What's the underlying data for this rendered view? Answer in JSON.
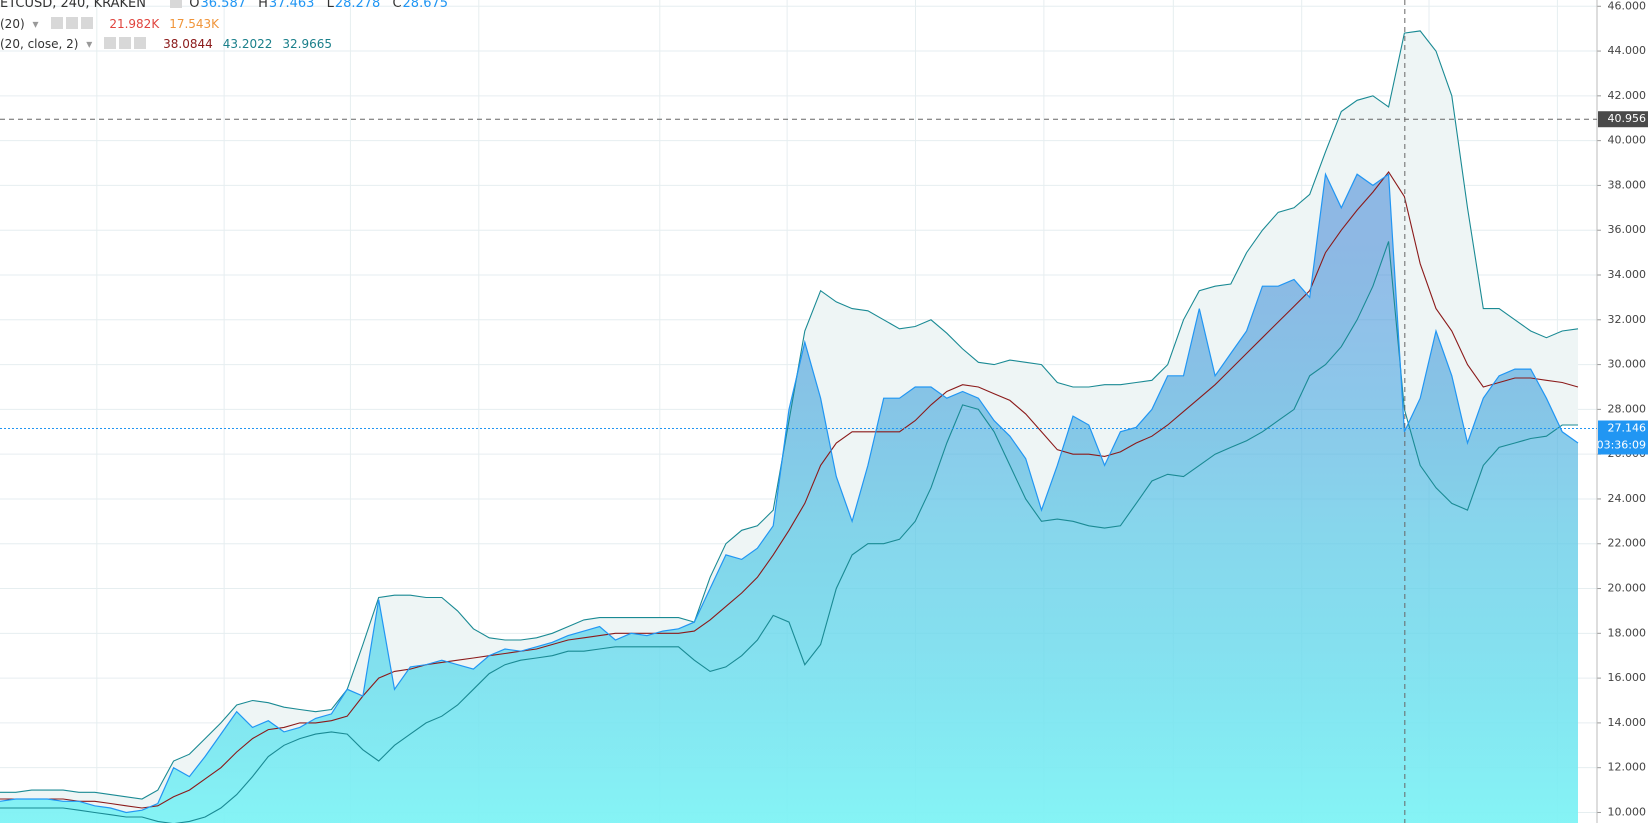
{
  "chart_data": {
    "type": "area",
    "symbol": "ETCUSD, 240, KRAKEN",
    "ohlc_labels": [
      "O",
      "H",
      "L",
      "C"
    ],
    "ohlc": [
      36.587,
      37.463,
      28.278,
      28.675
    ],
    "indicators": [
      {
        "label": "(20)",
        "values": [
          "21.982K",
          "17.543K"
        ],
        "colors": [
          "#e0443e",
          "#f0953a"
        ]
      },
      {
        "label": "(20, close, 2)",
        "values": [
          38.0844,
          43.2022,
          32.9665
        ],
        "colors": [
          "#8b1a1a",
          "#1a7f8a",
          "#1a7f8a"
        ]
      }
    ],
    "series": [
      {
        "color": "#2196f3",
        "values": [
          10.5,
          10.6,
          10.6,
          10.6,
          10.5,
          10.5,
          10.3,
          10.2,
          10.0,
          10.1,
          10.4,
          12.0,
          11.6,
          12.5,
          13.5,
          14.5,
          13.8,
          14.1,
          13.6,
          13.8,
          14.2,
          14.4,
          15.5,
          15.2,
          19.5,
          15.5,
          16.5,
          16.6,
          16.8,
          16.6,
          16.4,
          17.0,
          17.3,
          17.2,
          17.4,
          17.6,
          17.9,
          18.1,
          18.3,
          17.7,
          18.0,
          17.9,
          18.1,
          18.2,
          18.5,
          20.0,
          21.5,
          21.3,
          21.8,
          22.8,
          28.0,
          31.0,
          28.5,
          25.0,
          23.0,
          25.5,
          28.5,
          28.5,
          29.0,
          29.0,
          28.5,
          28.8,
          28.5,
          27.5,
          26.8,
          25.8,
          23.5,
          25.5,
          27.7,
          27.3,
          25.5,
          27.0,
          27.2,
          28.0,
          29.5,
          29.5,
          32.5,
          29.5,
          30.5,
          31.5,
          33.5,
          33.5,
          33.8,
          33.0,
          38.5,
          37.0,
          38.5,
          38.0,
          38.5,
          27.0,
          28.5,
          31.5,
          29.5,
          26.5,
          28.5,
          29.5,
          29.8,
          29.8,
          28.5,
          27.0,
          26.5
        ]
      },
      {
        "color": "#1a8a94",
        "values": [
          10.9,
          10.9,
          11.0,
          11.0,
          11.0,
          10.9,
          10.9,
          10.8,
          10.7,
          10.6,
          11.0,
          12.3,
          12.6,
          13.3,
          14.0,
          14.8,
          15.0,
          14.9,
          14.7,
          14.6,
          14.5,
          14.6,
          15.5,
          17.5,
          19.6,
          19.7,
          19.7,
          19.6,
          19.6,
          19.0,
          18.2,
          17.8,
          17.7,
          17.7,
          17.8,
          18.0,
          18.3,
          18.6,
          18.7,
          18.7,
          18.7,
          18.7,
          18.7,
          18.7,
          18.5,
          20.5,
          22.0,
          22.6,
          22.8,
          23.5,
          27.5,
          31.5,
          33.3,
          32.8,
          32.5,
          32.4,
          32.0,
          31.6,
          31.7,
          32.0,
          31.4,
          30.7,
          30.1,
          30.0,
          30.2,
          30.1,
          30.0,
          29.2,
          29.0,
          29.0,
          29.1,
          29.1,
          29.2,
          29.3,
          30.0,
          32.0,
          33.3,
          33.5,
          33.6,
          35.0,
          36.0,
          36.8,
          37.0,
          37.6,
          39.5,
          41.3,
          41.8,
          42.0,
          41.5,
          44.8,
          44.9,
          44.0,
          42.0,
          37.0,
          32.5,
          32.5,
          32.0,
          31.5,
          31.2,
          31.5,
          31.6
        ]
      },
      {
        "color": "#8b1a1a",
        "values": [
          10.6,
          10.6,
          10.6,
          10.6,
          10.6,
          10.5,
          10.5,
          10.4,
          10.3,
          10.2,
          10.3,
          10.7,
          11.0,
          11.5,
          12.0,
          12.7,
          13.3,
          13.7,
          13.8,
          14.0,
          14.0,
          14.1,
          14.3,
          15.2,
          16.0,
          16.3,
          16.4,
          16.6,
          16.7,
          16.8,
          16.9,
          17.0,
          17.1,
          17.2,
          17.3,
          17.5,
          17.7,
          17.8,
          17.9,
          18.0,
          18.0,
          18.0,
          18.0,
          18.0,
          18.1,
          18.6,
          19.2,
          19.8,
          20.5,
          21.5,
          22.6,
          23.8,
          25.5,
          26.5,
          27.0,
          27.0,
          27.0,
          27.0,
          27.5,
          28.2,
          28.8,
          29.1,
          29.0,
          28.7,
          28.4,
          27.8,
          27.0,
          26.2,
          26.0,
          26.0,
          25.9,
          26.1,
          26.5,
          26.8,
          27.3,
          27.9,
          28.5,
          29.1,
          29.8,
          30.5,
          31.2,
          31.9,
          32.6,
          33.3,
          35.0,
          36.0,
          36.9,
          37.7,
          38.6,
          37.5,
          34.5,
          32.5,
          31.5,
          30.0,
          29.0,
          29.2,
          29.4,
          29.4,
          29.3,
          29.2,
          29.0
        ]
      },
      {
        "color": "#1a8a94",
        "values": [
          10.2,
          10.2,
          10.2,
          10.2,
          10.2,
          10.1,
          10.0,
          9.9,
          9.8,
          9.8,
          9.6,
          9.5,
          9.6,
          9.8,
          10.2,
          10.8,
          11.6,
          12.5,
          13.0,
          13.3,
          13.5,
          13.6,
          13.5,
          12.8,
          12.3,
          13.0,
          13.5,
          14.0,
          14.3,
          14.8,
          15.5,
          16.2,
          16.6,
          16.8,
          16.9,
          17.0,
          17.2,
          17.2,
          17.3,
          17.4,
          17.4,
          17.4,
          17.4,
          17.4,
          16.8,
          16.3,
          16.5,
          17.0,
          17.7,
          18.8,
          18.5,
          16.6,
          17.5,
          20.0,
          21.5,
          22.0,
          22.0,
          22.2,
          23.0,
          24.5,
          26.5,
          28.2,
          28.0,
          27.0,
          25.5,
          24.0,
          23.0,
          23.1,
          23.0,
          22.8,
          22.7,
          22.8,
          23.8,
          24.8,
          25.1,
          25.0,
          25.5,
          26.0,
          26.3,
          26.6,
          27.0,
          27.5,
          28.0,
          29.5,
          30.0,
          30.8,
          32.0,
          33.5,
          35.5,
          28.0,
          25.5,
          24.5,
          23.8,
          23.5,
          25.5,
          26.3,
          26.5,
          26.7,
          26.8,
          27.3,
          27.3
        ]
      }
    ],
    "ylim": [
      9.53,
      46.28
    ],
    "yticks": [
      {
        "value": 10,
        "label": "10.000"
      },
      {
        "value": 12,
        "label": "12.000"
      },
      {
        "value": 14,
        "label": "14.000"
      },
      {
        "value": 16,
        "label": "16.000"
      },
      {
        "value": 18,
        "label": "18.000"
      },
      {
        "value": 20,
        "label": "20.000"
      },
      {
        "value": 22,
        "label": "22.000"
      },
      {
        "value": 24,
        "label": "24.000"
      },
      {
        "value": 26,
        "label": "26.000"
      },
      {
        "value": 28,
        "label": "28.000"
      },
      {
        "value": 30,
        "label": "30.000"
      },
      {
        "value": 32,
        "label": "32.000"
      },
      {
        "value": 34,
        "label": "34.000"
      },
      {
        "value": 36,
        "label": "36.000"
      },
      {
        "value": 38,
        "label": "38.000"
      },
      {
        "value": 40,
        "label": "40.000"
      },
      {
        "value": 42,
        "label": "42.000"
      },
      {
        "value": 44,
        "label": "44.000"
      },
      {
        "value": 46,
        "label": "46.000"
      }
    ],
    "grid": true,
    "crosshair_price": 40.956,
    "last_price": 27.146,
    "countdown": "03:36:09"
  }
}
